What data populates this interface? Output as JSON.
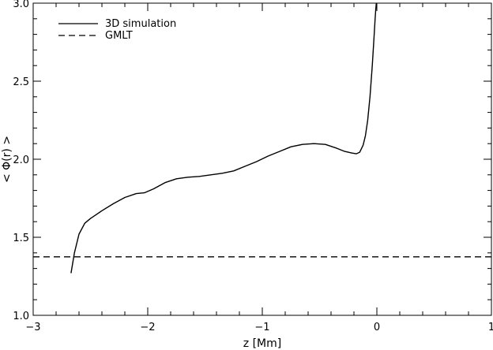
{
  "chart_data": {
    "type": "line",
    "title": "",
    "xlabel": "z [Mm]",
    "ylabel": "< Φ(r) >",
    "xlim": [
      -3,
      1
    ],
    "ylim": [
      1.0,
      3.0
    ],
    "x_ticks": [
      {
        "value": -3,
        "label": "−3"
      },
      {
        "value": -2,
        "label": "−2"
      },
      {
        "value": -1,
        "label": "−1"
      },
      {
        "value": 0,
        "label": "0"
      },
      {
        "value": 1,
        "label": "1"
      }
    ],
    "y_ticks": [
      {
        "value": 1.0,
        "label": "1.0"
      },
      {
        "value": 1.5,
        "label": "1.5"
      },
      {
        "value": 2.0,
        "label": "2.0"
      },
      {
        "value": 2.5,
        "label": "2.5"
      },
      {
        "value": 3.0,
        "label": "3.0"
      }
    ],
    "legend_position": "top-left",
    "series": [
      {
        "name": "3D simulation",
        "line_style": "solid",
        "x": [
          -2.67,
          -2.64,
          -2.6,
          -2.55,
          -2.5,
          -2.45,
          -2.4,
          -2.3,
          -2.2,
          -2.1,
          -2.03,
          -1.95,
          -1.85,
          -1.75,
          -1.65,
          -1.55,
          -1.45,
          -1.35,
          -1.25,
          -1.15,
          -1.05,
          -0.95,
          -0.85,
          -0.75,
          -0.65,
          -0.55,
          -0.45,
          -0.35,
          -0.28,
          -0.22,
          -0.18,
          -0.15,
          -0.12,
          -0.1,
          -0.08,
          -0.06,
          -0.04,
          -0.025,
          -0.015,
          -0.01,
          -0.005
        ],
        "y": [
          1.27,
          1.4,
          1.52,
          1.59,
          1.62,
          1.645,
          1.67,
          1.715,
          1.755,
          1.78,
          1.785,
          1.81,
          1.85,
          1.875,
          1.885,
          1.89,
          1.9,
          1.91,
          1.925,
          1.955,
          1.985,
          2.02,
          2.05,
          2.08,
          2.095,
          2.1,
          2.095,
          2.07,
          2.05,
          2.04,
          2.035,
          2.045,
          2.09,
          2.15,
          2.25,
          2.4,
          2.6,
          2.78,
          2.9,
          2.96,
          3.0
        ]
      },
      {
        "name": "GMLT",
        "line_style": "dashed",
        "x": [
          -3,
          1
        ],
        "y": [
          1.375,
          1.375
        ]
      }
    ]
  }
}
